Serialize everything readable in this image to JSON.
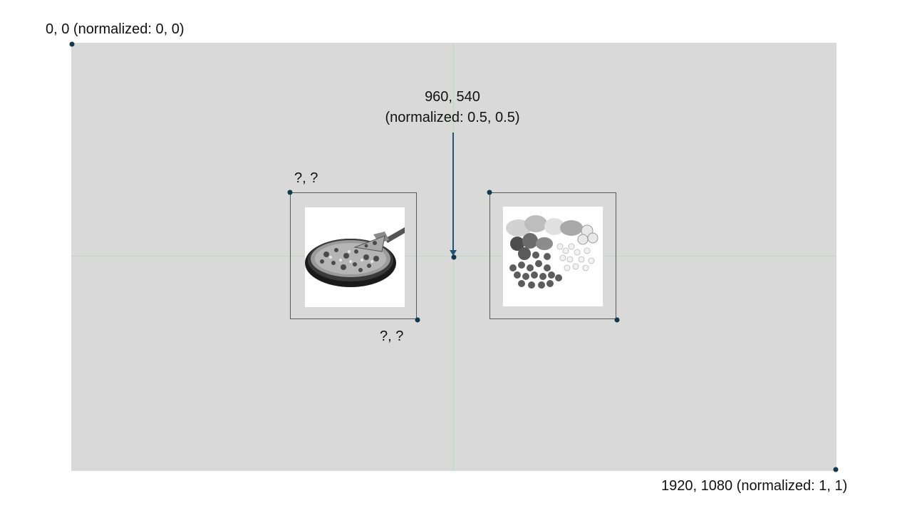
{
  "origin_label": "0, 0 (normalized: 0, 0)",
  "center_label_line1": "960, 540",
  "center_label_line2": "(normalized: 0.5, 0.5)",
  "end_label": "1920, 1080 (normalized: 1, 1)",
  "pizza_top_left_label": "?, ?",
  "pizza_bottom_right_label": "?, ?",
  "images": [
    {
      "name": "pizza-image"
    },
    {
      "name": "vegetables-image"
    }
  ],
  "colors": {
    "screen": "#d9d9d9",
    "guide": "#b9dcbf",
    "marker": "#13374d",
    "arrow": "#1f5678",
    "frame": "#595959"
  }
}
